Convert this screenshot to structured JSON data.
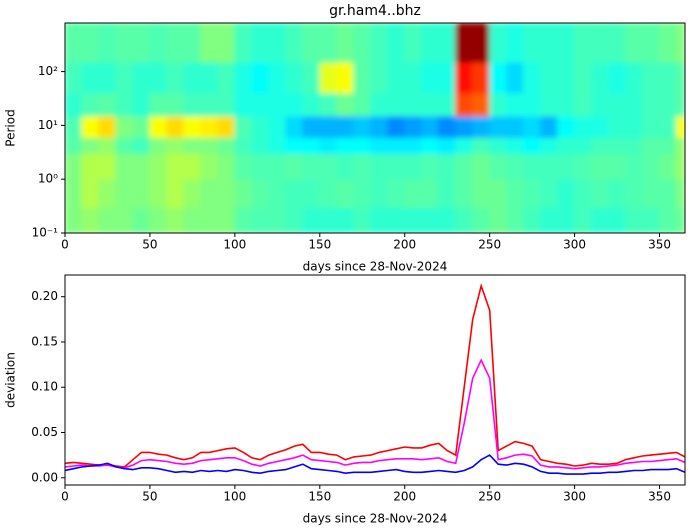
{
  "chart_data": [
    {
      "type": "heatmap",
      "title": "gr.ham4..bhz",
      "xlabel": "days since 28-Nov-2024",
      "ylabel": "Period",
      "colormap": "jet",
      "zlim": [
        0,
        1
      ],
      "ylog": true,
      "xlim": [
        0,
        365
      ],
      "xticks": [
        0,
        50,
        100,
        150,
        200,
        250,
        300,
        350
      ],
      "ylim": [
        0.1,
        800
      ],
      "yticks": [
        {
          "value": 0.1,
          "label": "10⁻¹"
        },
        {
          "value": 1,
          "label": "10⁰"
        },
        {
          "value": 10,
          "label": "10¹"
        },
        {
          "value": 100,
          "label": "10²"
        }
      ],
      "x_edges": [
        0,
        10,
        20,
        30,
        40,
        50,
        60,
        70,
        80,
        90,
        100,
        110,
        120,
        130,
        140,
        150,
        160,
        170,
        180,
        190,
        200,
        210,
        220,
        230,
        240,
        250,
        260,
        270,
        280,
        290,
        300,
        310,
        320,
        330,
        340,
        350,
        360,
        365
      ],
      "y_edges": [
        0.1,
        0.3,
        1,
        3,
        6,
        15,
        40,
        150,
        800
      ],
      "z": [
        [
          0.5,
          0.52,
          0.5,
          0.5,
          0.48,
          0.5,
          0.52,
          0.5,
          0.5,
          0.5,
          0.46,
          0.45,
          0.45,
          0.44,
          0.42,
          0.42,
          0.42,
          0.44,
          0.42,
          0.42,
          0.42,
          0.42,
          0.42,
          0.44,
          0.46,
          0.48,
          0.46,
          0.44,
          0.42,
          0.42,
          0.44,
          0.42,
          0.42,
          0.44,
          0.44,
          0.46,
          0.48
        ],
        [
          0.5,
          0.55,
          0.52,
          0.5,
          0.5,
          0.52,
          0.55,
          0.52,
          0.5,
          0.5,
          0.48,
          0.46,
          0.45,
          0.44,
          0.44,
          0.45,
          0.46,
          0.45,
          0.44,
          0.45,
          0.46,
          0.46,
          0.44,
          0.46,
          0.48,
          0.48,
          0.46,
          0.45,
          0.44,
          0.42,
          0.44,
          0.45,
          0.44,
          0.45,
          0.46,
          0.46,
          0.5
        ],
        [
          0.5,
          0.55,
          0.55,
          0.5,
          0.5,
          0.52,
          0.55,
          0.55,
          0.52,
          0.5,
          0.46,
          0.45,
          0.45,
          0.46,
          0.45,
          0.45,
          0.44,
          0.45,
          0.44,
          0.44,
          0.44,
          0.45,
          0.44,
          0.46,
          0.48,
          0.46,
          0.45,
          0.44,
          0.44,
          0.44,
          0.45,
          0.46,
          0.46,
          0.45,
          0.46,
          0.48,
          0.52
        ],
        [
          0.46,
          0.5,
          0.52,
          0.46,
          0.44,
          0.5,
          0.52,
          0.5,
          0.5,
          0.48,
          0.44,
          0.42,
          0.4,
          0.38,
          0.38,
          0.36,
          0.38,
          0.38,
          0.36,
          0.36,
          0.36,
          0.38,
          0.36,
          0.4,
          0.44,
          0.42,
          0.4,
          0.38,
          0.4,
          0.42,
          0.42,
          0.44,
          0.44,
          0.44,
          0.46,
          0.46,
          0.52
        ],
        [
          0.45,
          0.62,
          0.66,
          0.5,
          0.48,
          0.62,
          0.66,
          0.62,
          0.64,
          0.66,
          0.45,
          0.42,
          0.4,
          0.34,
          0.3,
          0.3,
          0.3,
          0.32,
          0.3,
          0.26,
          0.28,
          0.3,
          0.26,
          0.28,
          0.3,
          0.32,
          0.32,
          0.34,
          0.3,
          0.38,
          0.4,
          0.4,
          0.42,
          0.42,
          0.44,
          0.44,
          0.62
        ],
        [
          0.42,
          0.45,
          0.46,
          0.44,
          0.42,
          0.46,
          0.46,
          0.44,
          0.44,
          0.44,
          0.4,
          0.4,
          0.4,
          0.4,
          0.42,
          0.44,
          0.48,
          0.46,
          0.42,
          0.42,
          0.42,
          0.42,
          0.42,
          0.8,
          0.78,
          0.42,
          0.4,
          0.4,
          0.42,
          0.42,
          0.44,
          0.42,
          0.42,
          0.42,
          0.44,
          0.44,
          0.46
        ],
        [
          0.44,
          0.42,
          0.42,
          0.44,
          0.42,
          0.42,
          0.44,
          0.42,
          0.42,
          0.44,
          0.4,
          0.38,
          0.4,
          0.42,
          0.44,
          0.6,
          0.62,
          0.46,
          0.44,
          0.42,
          0.42,
          0.4,
          0.4,
          0.86,
          0.82,
          0.38,
          0.34,
          0.4,
          0.42,
          0.42,
          0.44,
          0.42,
          0.4,
          0.42,
          0.44,
          0.44,
          0.46
        ],
        [
          0.46,
          0.46,
          0.45,
          0.46,
          0.46,
          0.45,
          0.46,
          0.46,
          0.5,
          0.5,
          0.44,
          0.42,
          0.42,
          0.44,
          0.46,
          0.46,
          0.48,
          0.46,
          0.44,
          0.42,
          0.44,
          0.42,
          0.42,
          0.98,
          0.98,
          0.42,
          0.4,
          0.42,
          0.42,
          0.42,
          0.44,
          0.44,
          0.44,
          0.46,
          0.46,
          0.48,
          0.5
        ]
      ]
    },
    {
      "type": "line",
      "xlabel": "days since 28-Nov-2024",
      "ylabel": "deviation",
      "xlim": [
        0,
        365
      ],
      "xticks": [
        0,
        50,
        100,
        150,
        200,
        250,
        300,
        350
      ],
      "ylim": [
        -0.008,
        0.224
      ],
      "yticks": [
        {
          "value": 0,
          "label": "0.00"
        },
        {
          "value": 0.05,
          "label": "0.05"
        },
        {
          "value": 0.1,
          "label": "0.10"
        },
        {
          "value": 0.15,
          "label": "0.15"
        },
        {
          "value": 0.2,
          "label": "0.20"
        }
      ],
      "x": [
        0,
        5,
        10,
        15,
        20,
        25,
        30,
        35,
        40,
        45,
        50,
        55,
        60,
        65,
        70,
        75,
        80,
        85,
        90,
        95,
        100,
        105,
        110,
        115,
        120,
        125,
        130,
        135,
        140,
        145,
        150,
        155,
        160,
        165,
        170,
        175,
        180,
        185,
        190,
        195,
        200,
        205,
        210,
        215,
        220,
        225,
        230,
        235,
        240,
        245,
        250,
        255,
        260,
        265,
        270,
        275,
        280,
        285,
        290,
        295,
        300,
        305,
        310,
        315,
        320,
        325,
        330,
        335,
        340,
        345,
        350,
        355,
        360,
        365
      ],
      "series": [
        {
          "color": "#ff0000",
          "values": [
            0.016,
            0.017,
            0.016,
            0.015,
            0.014,
            0.015,
            0.013,
            0.012,
            0.02,
            0.028,
            0.028,
            0.026,
            0.025,
            0.022,
            0.02,
            0.022,
            0.028,
            0.028,
            0.03,
            0.032,
            0.033,
            0.028,
            0.022,
            0.02,
            0.025,
            0.028,
            0.031,
            0.035,
            0.037,
            0.028,
            0.028,
            0.026,
            0.025,
            0.02,
            0.023,
            0.024,
            0.025,
            0.028,
            0.03,
            0.032,
            0.034,
            0.033,
            0.033,
            0.036,
            0.038,
            0.03,
            0.025,
            0.1,
            0.175,
            0.212,
            0.185,
            0.03,
            0.035,
            0.04,
            0.038,
            0.035,
            0.02,
            0.018,
            0.016,
            0.015,
            0.013,
            0.014,
            0.016,
            0.015,
            0.015,
            0.016,
            0.02,
            0.022,
            0.024,
            0.025,
            0.026,
            0.027,
            0.028,
            0.023
          ]
        },
        {
          "color": "#ff00ff",
          "values": [
            0.012,
            0.013,
            0.014,
            0.013,
            0.013,
            0.014,
            0.012,
            0.011,
            0.014,
            0.019,
            0.02,
            0.019,
            0.018,
            0.016,
            0.015,
            0.016,
            0.019,
            0.02,
            0.021,
            0.022,
            0.022,
            0.019,
            0.015,
            0.013,
            0.016,
            0.018,
            0.02,
            0.022,
            0.025,
            0.02,
            0.019,
            0.018,
            0.017,
            0.014,
            0.016,
            0.017,
            0.017,
            0.019,
            0.02,
            0.021,
            0.021,
            0.021,
            0.02,
            0.021,
            0.022,
            0.018,
            0.016,
            0.06,
            0.11,
            0.13,
            0.11,
            0.02,
            0.022,
            0.025,
            0.026,
            0.024,
            0.014,
            0.012,
            0.012,
            0.011,
            0.01,
            0.011,
            0.012,
            0.012,
            0.013,
            0.014,
            0.016,
            0.017,
            0.018,
            0.018,
            0.019,
            0.02,
            0.021,
            0.017
          ]
        },
        {
          "color": "#0000ff",
          "values": [
            0.008,
            0.01,
            0.012,
            0.013,
            0.014,
            0.016,
            0.012,
            0.01,
            0.009,
            0.011,
            0.011,
            0.01,
            0.008,
            0.006,
            0.007,
            0.006,
            0.008,
            0.007,
            0.008,
            0.007,
            0.009,
            0.008,
            0.006,
            0.005,
            0.007,
            0.008,
            0.009,
            0.012,
            0.015,
            0.01,
            0.009,
            0.008,
            0.007,
            0.005,
            0.006,
            0.006,
            0.006,
            0.007,
            0.008,
            0.009,
            0.007,
            0.006,
            0.006,
            0.007,
            0.008,
            0.007,
            0.006,
            0.008,
            0.012,
            0.02,
            0.025,
            0.015,
            0.014,
            0.016,
            0.015,
            0.012,
            0.007,
            0.005,
            0.005,
            0.004,
            0.004,
            0.004,
            0.005,
            0.005,
            0.006,
            0.006,
            0.007,
            0.008,
            0.008,
            0.009,
            0.009,
            0.009,
            0.01,
            0.006
          ]
        }
      ]
    }
  ]
}
